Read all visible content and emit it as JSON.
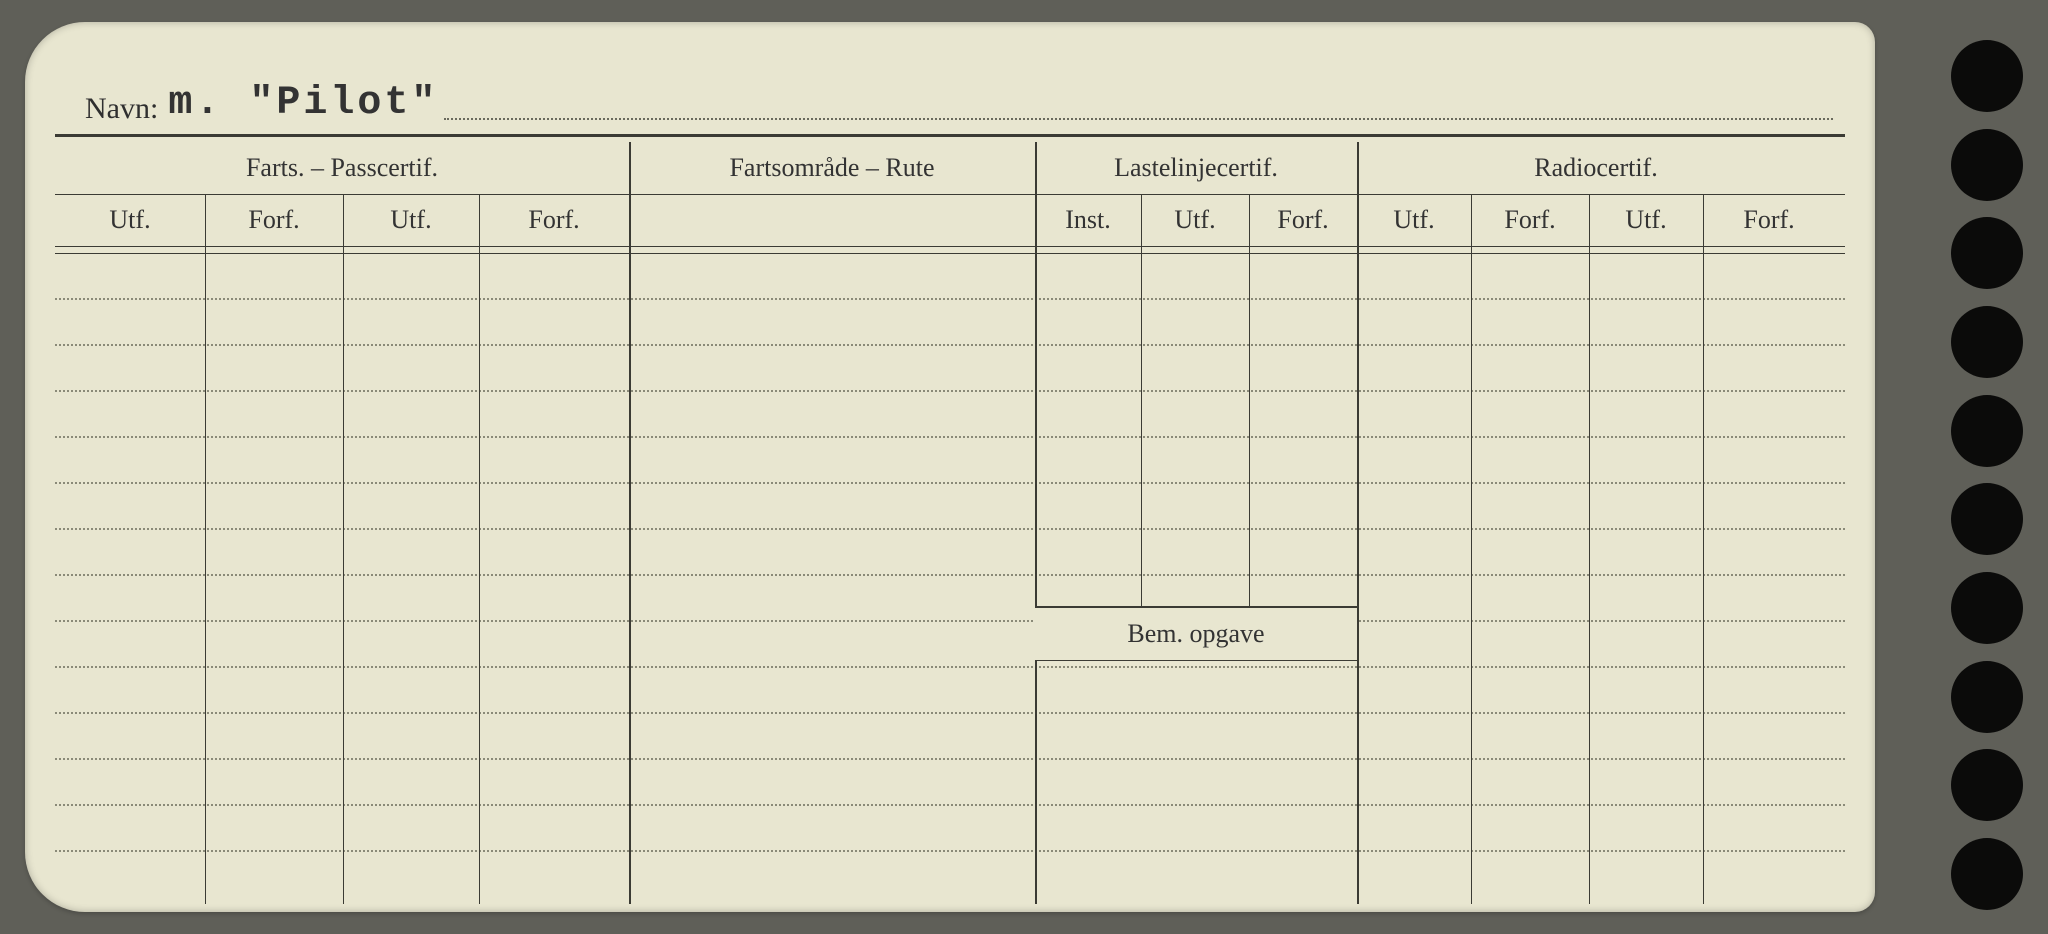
{
  "navn": {
    "label": "Navn:",
    "value": "m. \"Pilot\""
  },
  "sections": {
    "farts": {
      "title": "Farts. – Passcertif.",
      "cols": [
        "Utf.",
        "Forf.",
        "Utf.",
        "Forf."
      ]
    },
    "rute": {
      "title": "Fartsområde – Rute"
    },
    "last": {
      "title": "Lastelinjecertif.",
      "cols": [
        "Inst.",
        "Utf.",
        "Forf."
      ]
    },
    "radio": {
      "title": "Radiocertif.",
      "cols": [
        "Utf.",
        "Forf.",
        "Utf.",
        "Forf."
      ]
    }
  },
  "bem_opgave_label": "Bem. opgave",
  "layout": {
    "card_bg": "#e8e6d0",
    "line_color": "#3b3b34",
    "dotted_color": "#8a8a78",
    "farts_w": 574,
    "rute_w": 406,
    "last_w": 322,
    "radio_w": 478,
    "farts_sub_w": [
      150,
      138,
      136,
      150
    ],
    "last_sub_w": [
      106,
      108,
      108
    ],
    "radio_sub_w": [
      114,
      118,
      114,
      132
    ],
    "body_rows_total": 14,
    "bem_row_at": 8
  }
}
